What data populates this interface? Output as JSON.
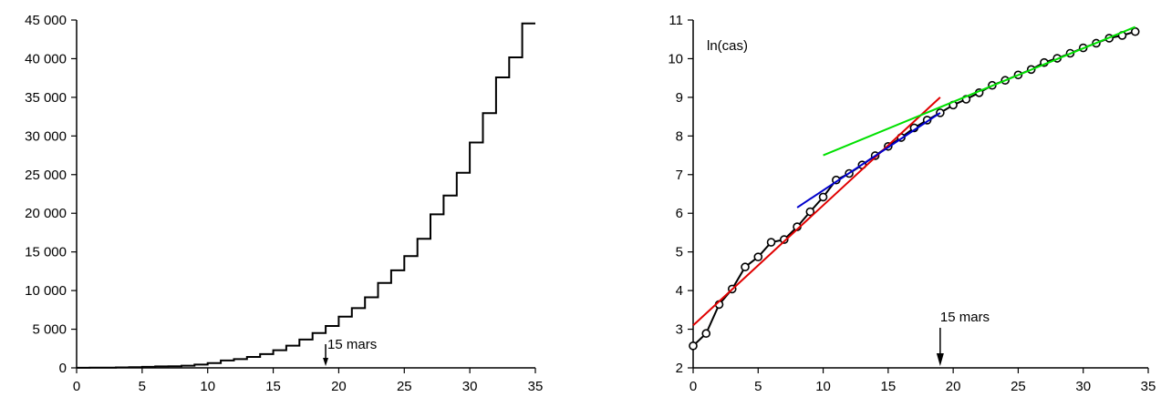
{
  "chart_data": [
    {
      "type": "line",
      "step": true,
      "title": "",
      "xlabel": "",
      "ylabel": "",
      "xlim": [
        0,
        35
      ],
      "ylim": [
        0,
        45000
      ],
      "xticks": [
        0,
        5,
        10,
        15,
        20,
        25,
        30,
        35
      ],
      "yticks": [
        0,
        5000,
        10000,
        15000,
        20000,
        25000,
        30000,
        35000,
        40000,
        45000
      ],
      "ytick_labels": [
        "0",
        "5 000",
        "10 000",
        "15 000",
        "20 000",
        "25 000",
        "30 000",
        "35 000",
        "40 000",
        "45 000"
      ],
      "xtick_labels": [
        "0",
        "5",
        "10",
        "15",
        "20",
        "25",
        "30",
        "35"
      ],
      "grid": false,
      "series": [
        {
          "color": "#000000",
          "x": [
            0,
            1,
            2,
            3,
            4,
            5,
            6,
            7,
            8,
            9,
            10,
            11,
            12,
            13,
            14,
            15,
            16,
            17,
            18,
            19,
            20,
            21,
            22,
            23,
            24,
            25,
            26,
            27,
            28,
            29,
            30,
            31,
            32,
            33,
            34
          ],
          "values": [
            13,
            18,
            38,
            57,
            100,
            130,
            191,
            204,
            285,
            420,
            613,
            949,
            1126,
            1412,
            1784,
            2281,
            2876,
            3661,
            4500,
            5423,
            6633,
            7730,
            9134,
            10995,
            12612,
            14459,
            16689,
            19856,
            22302,
            25233,
            29155,
            32964,
            37575,
            40174,
            44550
          ]
        }
      ],
      "annotations": [
        {
          "text": "15 mars",
          "x": 19,
          "arrow": true
        }
      ]
    },
    {
      "type": "line",
      "title": "",
      "xlabel": "",
      "ylabel": "",
      "inner_label": "ln(cas)",
      "xlim": [
        0,
        35
      ],
      "ylim": [
        2,
        11
      ],
      "xticks": [
        0,
        5,
        10,
        15,
        20,
        25,
        30,
        35
      ],
      "yticks": [
        2,
        3,
        4,
        5,
        6,
        7,
        8,
        9,
        10,
        11
      ],
      "xtick_labels": [
        "0",
        "5",
        "10",
        "15",
        "20",
        "25",
        "30",
        "35"
      ],
      "ytick_labels": [
        "2",
        "3",
        "4",
        "5",
        "6",
        "7",
        "8",
        "9",
        "10",
        "11"
      ],
      "grid": false,
      "series": [
        {
          "color": "#000000",
          "marker": "circle",
          "x": [
            0,
            1,
            2,
            3,
            4,
            5,
            6,
            7,
            8,
            9,
            10,
            11,
            12,
            13,
            14,
            15,
            16,
            17,
            18,
            19,
            20,
            21,
            22,
            23,
            24,
            25,
            26,
            27,
            28,
            29,
            30,
            31,
            32,
            33,
            34
          ],
          "values": [
            2.57,
            2.89,
            3.64,
            4.04,
            4.61,
            4.87,
            5.25,
            5.32,
            5.65,
            6.04,
            6.42,
            6.86,
            7.03,
            7.25,
            7.49,
            7.73,
            7.96,
            8.21,
            8.41,
            8.6,
            8.8,
            8.95,
            9.12,
            9.31,
            9.44,
            9.58,
            9.72,
            9.9,
            10.01,
            10.14,
            10.28,
            10.4,
            10.53,
            10.6,
            10.7
          ]
        },
        {
          "color": "#e00000",
          "x": [
            0,
            19
          ],
          "values": [
            3.1,
            9.0
          ]
        },
        {
          "color": "#0000cc",
          "x": [
            8,
            19
          ],
          "values": [
            6.15,
            8.6
          ]
        },
        {
          "color": "#00e000",
          "x": [
            10,
            34
          ],
          "values": [
            7.5,
            10.82
          ]
        }
      ],
      "annotations": [
        {
          "text": "15 mars",
          "x": 19,
          "arrow": true
        }
      ]
    }
  ]
}
